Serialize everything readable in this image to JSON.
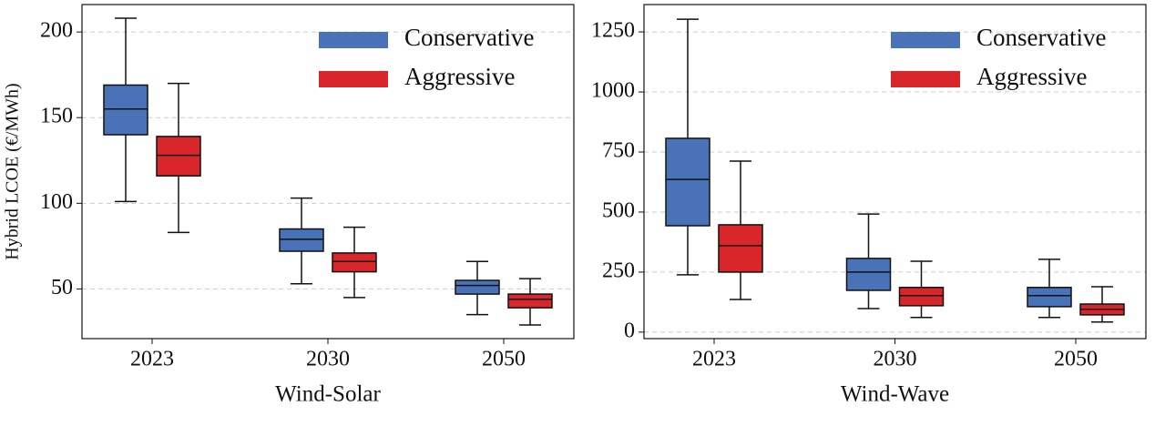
{
  "chart_data": [
    {
      "type": "box",
      "ylabel": "Hybrid LCOE (€/MWh)",
      "xlabel": "Wind-Solar",
      "categories": [
        "2023",
        "2030",
        "2050"
      ],
      "ylim": [
        21,
        216
      ],
      "yticks": [
        50,
        100,
        150,
        200
      ],
      "grid": true,
      "legend": "upper right",
      "series": [
        {
          "name": "Conservative",
          "color": "#4a72b8",
          "whislo": [
            101,
            53,
            35
          ],
          "q1": [
            140,
            72,
            47
          ],
          "median": [
            155,
            79,
            52
          ],
          "q3": [
            169,
            85,
            55
          ],
          "whishi": [
            208,
            103,
            66
          ]
        },
        {
          "name": "Aggressive",
          "color": "#d9262a",
          "whislo": [
            83,
            45,
            29
          ],
          "q1": [
            116,
            60,
            39
          ],
          "median": [
            128,
            66,
            44
          ],
          "q3": [
            139,
            71,
            47
          ],
          "whishi": [
            170,
            86,
            56
          ]
        }
      ]
    },
    {
      "type": "box",
      "xlabel": "Wind-Wave",
      "categories": [
        "2023",
        "2030",
        "2050"
      ],
      "ylim": [
        -27,
        1364
      ],
      "yticks": [
        0,
        250,
        500,
        750,
        1000,
        1250
      ],
      "grid": true,
      "legend": "upper right",
      "series": [
        {
          "name": "Conservative",
          "color": "#4a72b8",
          "whislo": [
            239,
            98,
            61
          ],
          "q1": [
            443,
            174,
            106
          ],
          "median": [
            636,
            250,
            152
          ],
          "q3": [
            807,
            307,
            186
          ],
          "whishi": [
            1303,
            492,
            303
          ]
        },
        {
          "name": "Aggressive",
          "color": "#d9262a",
          "whislo": [
            136,
            61,
            42
          ],
          "q1": [
            250,
            110,
            72
          ],
          "median": [
            360,
            152,
            95
          ],
          "q3": [
            447,
            186,
            117
          ],
          "whishi": [
            712,
            295,
            189
          ]
        }
      ]
    }
  ]
}
